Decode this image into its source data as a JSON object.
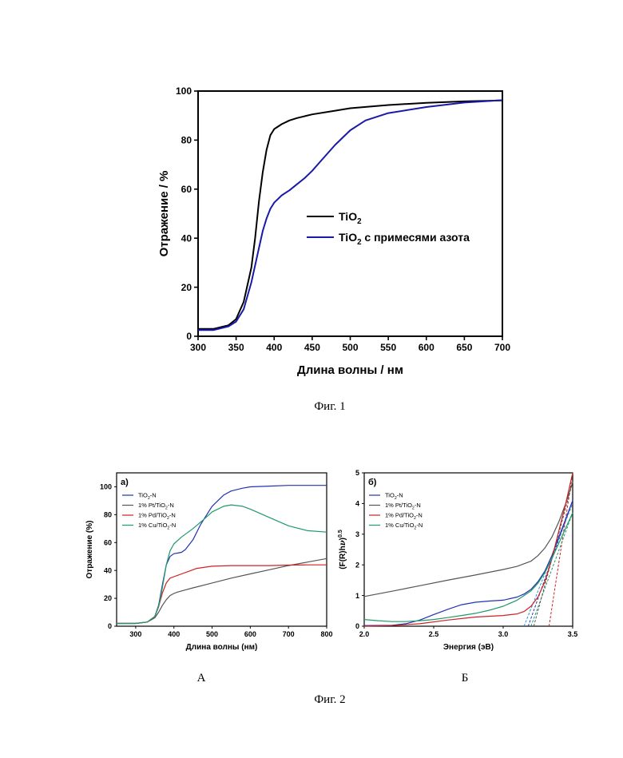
{
  "figure1": {
    "caption": "Фиг. 1",
    "chart_data": {
      "type": "line",
      "xlabel": "Длина волны / нм",
      "ylabel": "Отражение / %",
      "xlim": [
        300,
        700
      ],
      "ylim": [
        0,
        100
      ],
      "xticks": [
        "300",
        "350",
        "400",
        "450",
        "500",
        "550",
        "600",
        "650",
        "700"
      ],
      "yticks": [
        "0",
        "20",
        "40",
        "60",
        "80",
        "100"
      ],
      "legend_position": "center-right",
      "series": [
        {
          "name": "TiO",
          "sub": "2",
          "suffix": "",
          "color": "#000000",
          "x": [
            300,
            320,
            340,
            350,
            360,
            370,
            375,
            380,
            385,
            390,
            395,
            400,
            405,
            410,
            420,
            430,
            450,
            480,
            500,
            550,
            600,
            650,
            700
          ],
          "y": [
            3,
            3,
            4.5,
            7,
            14,
            28,
            40,
            55,
            67,
            76,
            82,
            84.5,
            85.5,
            86.5,
            88,
            89,
            90.5,
            92,
            93,
            94.3,
            95.2,
            95.8,
            96.2
          ]
        },
        {
          "name": "TiO",
          "sub": "2",
          "suffix": " с примесями азота",
          "color": "#1a1aa8",
          "x": [
            300,
            320,
            340,
            350,
            360,
            370,
            380,
            385,
            390,
            395,
            400,
            410,
            420,
            430,
            440,
            450,
            460,
            480,
            500,
            520,
            550,
            600,
            650,
            700
          ],
          "y": [
            2.5,
            2.5,
            4,
            6,
            11,
            22,
            36,
            43,
            48,
            52,
            54.5,
            57.5,
            59.5,
            62,
            64.5,
            67.5,
            71,
            78,
            84,
            88,
            91,
            93.5,
            95.3,
            96.3
          ]
        }
      ]
    }
  },
  "figure2": {
    "caption": "Фиг. 2",
    "panels": [
      {
        "panel_tag": "а)",
        "bottom_label": "А",
        "chart_data": {
          "type": "line",
          "xlabel": "Длина волны (нм)",
          "ylabel": "Отражение (%)",
          "xlim": [
            250,
            800
          ],
          "ylim": [
            0,
            110
          ],
          "xticks": [
            "300",
            "400",
            "500",
            "600",
            "700",
            "800"
          ],
          "yticks": [
            "0",
            "20",
            "40",
            "60",
            "80",
            "100"
          ],
          "legend_position": "top-left",
          "series": [
            {
              "name": "TiO",
              "sub": "2",
              "suffix": "-N",
              "color": "#2233b0",
              "x": [
                250,
                300,
                330,
                350,
                360,
                370,
                380,
                390,
                400,
                410,
                420,
                430,
                450,
                470,
                500,
                530,
                550,
                580,
                600,
                650,
                700,
                750,
                800
              ],
              "y": [
                2,
                2,
                3,
                7,
                15,
                30,
                44,
                50,
                52,
                52.5,
                53,
                55,
                62,
                73,
                86,
                94,
                97,
                99,
                100,
                100.5,
                101,
                101,
                101
              ]
            },
            {
              "name": "1% Pt/TiO",
              "sub": "2",
              "suffix": "-N",
              "color": "#555555",
              "x": [
                250,
                300,
                330,
                350,
                360,
                370,
                380,
                390,
                400,
                410,
                430,
                450,
                500,
                550,
                600,
                650,
                700,
                750,
                800
              ],
              "y": [
                2,
                2,
                3,
                6,
                10,
                15,
                19,
                22,
                23.5,
                24.5,
                26,
                27.5,
                31,
                34.5,
                37.5,
                40.5,
                43.5,
                46,
                48.5
              ]
            },
            {
              "name": "1% Pd/TiO",
              "sub": "2",
              "suffix": "-N",
              "color": "#cc2222",
              "x": [
                250,
                300,
                330,
                350,
                360,
                370,
                380,
                390,
                400,
                410,
                420,
                440,
                460,
                500,
                550,
                600,
                650,
                700,
                750,
                800
              ],
              "y": [
                2,
                2,
                3,
                7,
                14,
                24,
                31,
                34.5,
                35.5,
                36.5,
                37.5,
                39.5,
                41.5,
                43,
                43.5,
                43.5,
                43.5,
                43.8,
                44,
                44
              ]
            },
            {
              "name": "1% Cu/TiO",
              "sub": "2",
              "suffix": "-N",
              "color": "#1f9a6a",
              "x": [
                250,
                300,
                330,
                350,
                360,
                370,
                380,
                390,
                400,
                420,
                450,
                480,
                500,
                530,
                550,
                580,
                600,
                650,
                700,
                750,
                800
              ],
              "y": [
                2,
                2,
                3,
                7,
                14,
                28,
                44,
                54,
                59,
                64,
                70,
                77,
                82,
                86,
                87,
                86,
                84,
                78,
                72,
                68.5,
                67.5
              ]
            }
          ]
        }
      },
      {
        "panel_tag": "б)",
        "bottom_label": "Б",
        "chart_data": {
          "type": "line",
          "xlabel": "Энергия (эВ)",
          "ylabel": "(F(R)hν)0.5",
          "ylabel_main": "(F(R)h",
          "ylabel_nu": "ν",
          "ylabel_close": ")",
          "ylabel_sup": "0.5",
          "xlim": [
            2.0,
            3.5
          ],
          "ylim": [
            0,
            5
          ],
          "xticks": [
            "2.0",
            "2.5",
            "3.0",
            "3.5"
          ],
          "yticks": [
            "0",
            "1",
            "2",
            "3",
            "4",
            "5"
          ],
          "legend_position": "top-left",
          "series": [
            {
              "name": "TiO",
              "sub": "2",
              "suffix": "-N",
              "color": "#2233b0",
              "x": [
                2.0,
                2.2,
                2.3,
                2.4,
                2.5,
                2.6,
                2.7,
                2.8,
                2.9,
                3.0,
                3.1,
                3.15,
                3.2,
                3.25,
                3.3,
                3.35,
                3.4,
                3.45,
                3.5
              ],
              "y": [
                0.02,
                0.03,
                0.08,
                0.2,
                0.38,
                0.55,
                0.7,
                0.78,
                0.82,
                0.85,
                0.95,
                1.05,
                1.2,
                1.45,
                1.8,
                2.3,
                2.9,
                3.5,
                4.1
              ]
            },
            {
              "name": "1% Pt/TiO",
              "sub": "2",
              "suffix": "-N",
              "color": "#555555",
              "x": [
                2.0,
                2.2,
                2.4,
                2.6,
                2.8,
                3.0,
                3.1,
                3.2,
                3.25,
                3.3,
                3.35,
                3.4,
                3.45,
                3.5
              ],
              "y": [
                0.97,
                1.14,
                1.32,
                1.5,
                1.67,
                1.85,
                1.95,
                2.12,
                2.3,
                2.55,
                2.9,
                3.4,
                4.0,
                4.7
              ]
            },
            {
              "name": "1% Pd/TiO",
              "sub": "2",
              "suffix": "-N",
              "color": "#cc2222",
              "x": [
                2.0,
                2.2,
                2.4,
                2.6,
                2.8,
                3.0,
                3.1,
                3.15,
                3.2,
                3.25,
                3.3,
                3.35,
                3.4,
                3.45,
                3.5
              ],
              "y": [
                0.0,
                0.02,
                0.08,
                0.2,
                0.3,
                0.35,
                0.4,
                0.48,
                0.65,
                0.95,
                1.45,
                2.2,
                3.1,
                4.0,
                5.0
              ]
            },
            {
              "name": "1% Cu/TiO",
              "sub": "2",
              "suffix": "-N",
              "color": "#1f9a6a",
              "x": [
                2.0,
                2.1,
                2.2,
                2.3,
                2.4,
                2.5,
                2.6,
                2.7,
                2.8,
                2.9,
                3.0,
                3.1,
                3.15,
                3.2,
                3.25,
                3.3,
                3.35,
                3.4,
                3.45,
                3.5
              ],
              "y": [
                0.22,
                0.18,
                0.15,
                0.15,
                0.18,
                0.22,
                0.28,
                0.35,
                0.42,
                0.52,
                0.65,
                0.85,
                1.0,
                1.15,
                1.4,
                1.75,
                2.2,
                2.7,
                3.2,
                3.7
              ]
            }
          ],
          "tangent_lines": [
            {
              "color": "#2233b0",
              "x": [
                3.18,
                3.5
              ],
              "y": [
                0,
                4.1
              ]
            },
            {
              "color": "#2b8fd6",
              "x": [
                3.15,
                3.5
              ],
              "y": [
                0,
                4.0
              ]
            },
            {
              "color": "#cc2222",
              "x": [
                3.33,
                3.5
              ],
              "y": [
                0,
                5.0
              ]
            },
            {
              "color": "#1f9a6a",
              "x": [
                3.2,
                3.5
              ],
              "y": [
                0,
                3.7
              ]
            },
            {
              "color": "#555555",
              "x": [
                3.22,
                3.5
              ],
              "y": [
                0,
                4.7
              ]
            }
          ]
        }
      }
    ]
  }
}
